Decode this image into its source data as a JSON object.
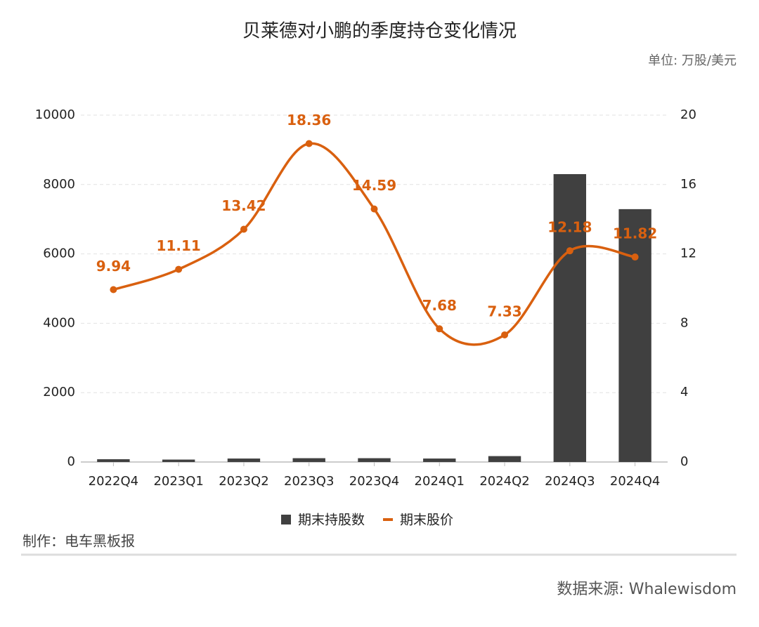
{
  "chart_data": {
    "type": "bar-line",
    "title": "贝莱德对小鹏的季度持仓变化情况",
    "unit_note": "单位: 万股/美元",
    "categories": [
      "2022Q4",
      "2023Q1",
      "2023Q2",
      "2023Q3",
      "2023Q4",
      "2024Q1",
      "2024Q2",
      "2024Q3",
      "2024Q4"
    ],
    "series": [
      {
        "name": "期末持股数",
        "type": "bar",
        "color": "#404040",
        "values": [
          80,
          70,
          100,
          110,
          110,
          100,
          170,
          8300,
          7290
        ]
      },
      {
        "name": "期末股价",
        "type": "line",
        "axis": "y2",
        "color": "#d9600f",
        "values": [
          9.94,
          11.11,
          13.42,
          18.36,
          14.59,
          7.68,
          7.33,
          12.18,
          11.82
        ]
      }
    ],
    "ylim": [
      0,
      10000
    ],
    "yticks": [
      0,
      2000,
      4000,
      6000,
      8000,
      10000
    ],
    "y2lim": [
      0,
      20
    ],
    "y2ticks": [
      0,
      4,
      8,
      12,
      16,
      20
    ],
    "grid": true,
    "credit": "制作：电车黑板报",
    "source": "数据来源: Whalewisdom"
  }
}
